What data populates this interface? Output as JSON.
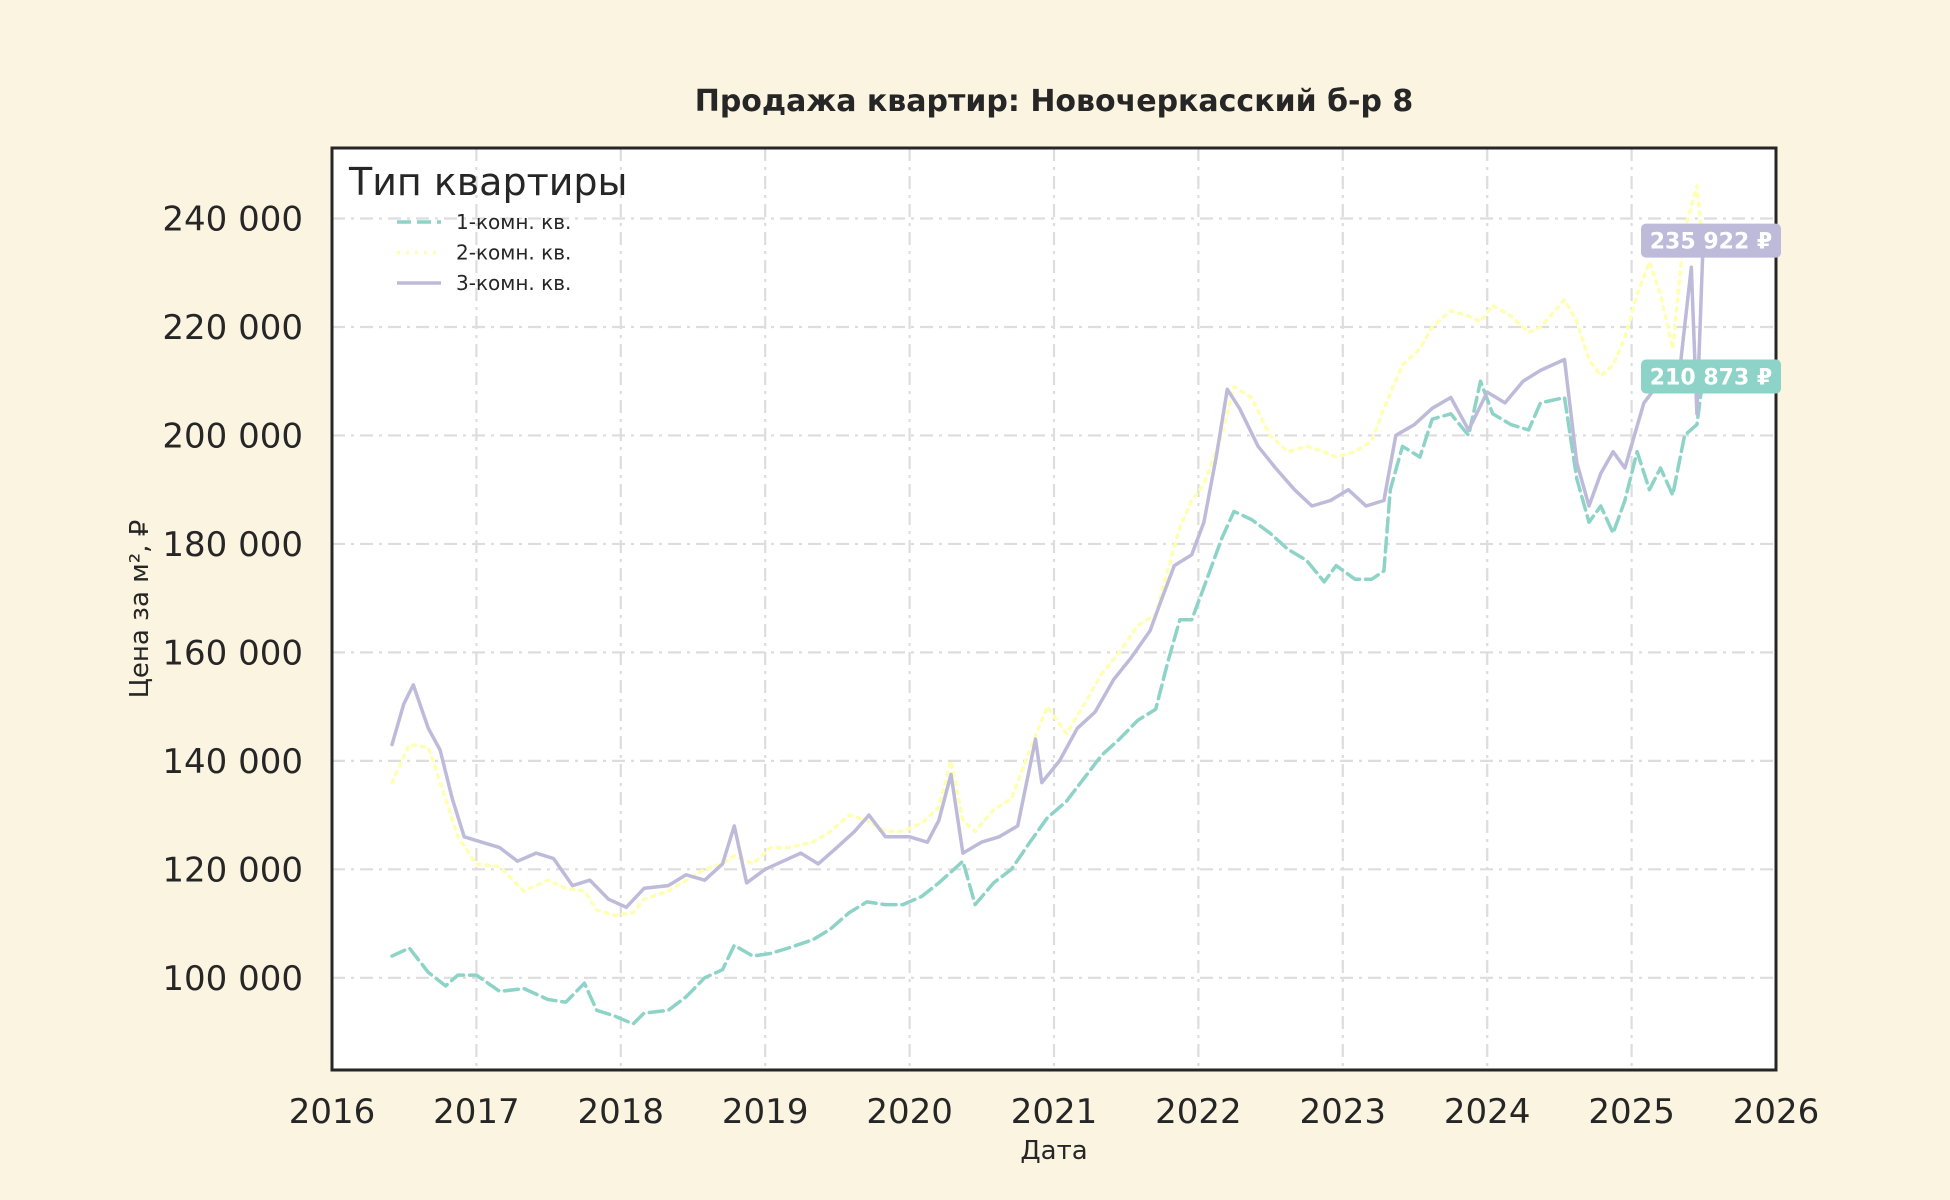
{
  "chart_data": {
    "type": "line",
    "title": "Продажа квартир: Новочеркасский б-р 8",
    "xlabel": "Дата",
    "ylabel": "Цена за м², ₽",
    "xlim": [
      2016,
      2026
    ],
    "ylim": [
      83000,
      253000
    ],
    "x_ticks": [
      "2016",
      "2017",
      "2018",
      "2019",
      "2020",
      "2021",
      "2022",
      "2023",
      "2024",
      "2025",
      "2026"
    ],
    "y_ticks": [
      {
        "value": 100000,
        "label": "100 000"
      },
      {
        "value": 120000,
        "label": "120 000"
      },
      {
        "value": 140000,
        "label": "140 000"
      },
      {
        "value": 160000,
        "label": "160 000"
      },
      {
        "value": 180000,
        "label": "180 000"
      },
      {
        "value": 200000,
        "label": "200 000"
      },
      {
        "value": 220000,
        "label": "220 000"
      },
      {
        "value": 240000,
        "label": "240 000"
      }
    ],
    "grid": true,
    "legend": {
      "title": "Тип квартиры",
      "position": "top-left"
    },
    "series": [
      {
        "name": "1-комн. кв.",
        "color": "#8dd3c7",
        "style": "dashed",
        "end_label": "210 873 ₽",
        "end_label_value": 210873,
        "points": [
          [
            "2016-06-01",
            104000
          ],
          [
            "2016-07-15",
            105500
          ],
          [
            "2016-09-01",
            101000
          ],
          [
            "2016-10-15",
            98500
          ],
          [
            "2016-11-15",
            100500
          ],
          [
            "2017-01-01",
            100500
          ],
          [
            "2017-03-01",
            97500
          ],
          [
            "2017-05-01",
            98000
          ],
          [
            "2017-07-01",
            96000
          ],
          [
            "2017-08-15",
            95500
          ],
          [
            "2017-10-01",
            99000
          ],
          [
            "2017-11-01",
            94000
          ],
          [
            "2017-12-15",
            93000
          ],
          [
            "2018-02-01",
            91500
          ],
          [
            "2018-03-01",
            93500
          ],
          [
            "2018-05-01",
            94000
          ],
          [
            "2018-06-15",
            96500
          ],
          [
            "2018-08-01",
            100000
          ],
          [
            "2018-09-15",
            101500
          ],
          [
            "2018-10-15",
            106000
          ],
          [
            "2018-12-01",
            104000
          ],
          [
            "2019-01-15",
            104500
          ],
          [
            "2019-03-01",
            105500
          ],
          [
            "2019-05-01",
            107000
          ],
          [
            "2019-06-15",
            109000
          ],
          [
            "2019-08-01",
            112000
          ],
          [
            "2019-09-15",
            114000
          ],
          [
            "2019-11-01",
            113500
          ],
          [
            "2019-12-15",
            113500
          ],
          [
            "2020-02-01",
            115000
          ],
          [
            "2020-03-15",
            117500
          ],
          [
            "2020-04-15",
            119500
          ],
          [
            "2020-05-15",
            121500
          ],
          [
            "2020-06-15",
            113500
          ],
          [
            "2020-08-01",
            117500
          ],
          [
            "2020-09-15",
            120000
          ],
          [
            "2020-11-01",
            125000
          ],
          [
            "2020-12-15",
            129500
          ],
          [
            "2021-02-01",
            132500
          ],
          [
            "2021-03-15",
            136500
          ],
          [
            "2021-05-01",
            141000
          ],
          [
            "2021-06-15",
            144000
          ],
          [
            "2021-08-01",
            147500
          ],
          [
            "2021-09-15",
            149500
          ],
          [
            "2021-10-15",
            158000
          ],
          [
            "2021-11-15",
            166000
          ],
          [
            "2021-12-15",
            166000
          ],
          [
            "2022-01-15",
            172000
          ],
          [
            "2022-03-01",
            181000
          ],
          [
            "2022-04-01",
            186000
          ],
          [
            "2022-05-15",
            184500
          ],
          [
            "2022-07-01",
            182000
          ],
          [
            "2022-08-15",
            179000
          ],
          [
            "2022-10-01",
            177000
          ],
          [
            "2022-11-15",
            173000
          ],
          [
            "2022-12-15",
            176000
          ],
          [
            "2023-02-01",
            173500
          ],
          [
            "2023-03-15",
            173500
          ],
          [
            "2023-04-15",
            175000
          ],
          [
            "2023-05-01",
            190000
          ],
          [
            "2023-06-01",
            198000
          ],
          [
            "2023-07-15",
            196000
          ],
          [
            "2023-08-15",
            203000
          ],
          [
            "2023-10-01",
            204000
          ],
          [
            "2023-11-15",
            200000
          ],
          [
            "2023-12-15",
            210000
          ],
          [
            "2024-01-15",
            204000
          ],
          [
            "2024-03-01",
            202000
          ],
          [
            "2024-04-15",
            201000
          ],
          [
            "2024-05-15",
            206000
          ],
          [
            "2024-07-15",
            207000
          ],
          [
            "2024-08-15",
            192000
          ],
          [
            "2024-09-15",
            184000
          ],
          [
            "2024-10-15",
            187000
          ],
          [
            "2024-11-15",
            182000
          ],
          [
            "2024-12-15",
            188000
          ],
          [
            "2025-01-15",
            197000
          ],
          [
            "2025-02-15",
            190000
          ],
          [
            "2025-03-15",
            194000
          ],
          [
            "2025-04-15",
            189000
          ],
          [
            "2025-05-15",
            200000
          ],
          [
            "2025-06-15",
            202000
          ],
          [
            "2025-07-01",
            210873
          ]
        ]
      },
      {
        "name": "2-комн. кв.",
        "color": "#ffffb3",
        "style": "dotted",
        "end_label": "",
        "points": [
          [
            "2016-06-01",
            136000
          ],
          [
            "2016-07-15",
            143000
          ],
          [
            "2016-09-01",
            142500
          ],
          [
            "2016-10-15",
            133000
          ],
          [
            "2016-11-15",
            126000
          ],
          [
            "2017-01-01",
            121000
          ],
          [
            "2017-03-01",
            120500
          ],
          [
            "2017-05-01",
            116000
          ],
          [
            "2017-07-01",
            118000
          ],
          [
            "2017-08-15",
            116500
          ],
          [
            "2017-10-01",
            116000
          ],
          [
            "2017-11-01",
            112500
          ],
          [
            "2017-12-15",
            111500
          ],
          [
            "2018-02-01",
            112000
          ],
          [
            "2018-03-01",
            114500
          ],
          [
            "2018-05-01",
            116000
          ],
          [
            "2018-06-15",
            118000
          ],
          [
            "2018-08-01",
            120000
          ],
          [
            "2018-09-15",
            121000
          ],
          [
            "2018-10-15",
            122500
          ],
          [
            "2018-12-01",
            121000
          ],
          [
            "2019-01-15",
            124000
          ],
          [
            "2019-03-01",
            124000
          ],
          [
            "2019-05-01",
            125000
          ],
          [
            "2019-06-15",
            127000
          ],
          [
            "2019-08-01",
            130000
          ],
          [
            "2019-09-15",
            129000
          ],
          [
            "2019-11-01",
            127000
          ],
          [
            "2019-12-15",
            127000
          ],
          [
            "2020-02-01",
            128500
          ],
          [
            "2020-03-15",
            131500
          ],
          [
            "2020-04-15",
            140000
          ],
          [
            "2020-05-15",
            129000
          ],
          [
            "2020-06-15",
            127000
          ],
          [
            "2020-08-01",
            131000
          ],
          [
            "2020-09-15",
            133000
          ],
          [
            "2020-11-01",
            142000
          ],
          [
            "2020-12-15",
            150000
          ],
          [
            "2021-02-01",
            145000
          ],
          [
            "2021-03-15",
            150000
          ],
          [
            "2021-05-01",
            156000
          ],
          [
            "2021-06-15",
            160000
          ],
          [
            "2021-08-01",
            165000
          ],
          [
            "2021-09-15",
            167000
          ],
          [
            "2021-10-15",
            175000
          ],
          [
            "2021-11-15",
            183000
          ],
          [
            "2021-12-15",
            188000
          ],
          [
            "2022-01-15",
            191000
          ],
          [
            "2022-03-01",
            200000
          ],
          [
            "2022-04-01",
            209000
          ],
          [
            "2022-05-15",
            207000
          ],
          [
            "2022-07-01",
            200000
          ],
          [
            "2022-08-15",
            197000
          ],
          [
            "2022-10-01",
            198000
          ],
          [
            "2022-11-15",
            197000
          ],
          [
            "2022-12-15",
            196000
          ],
          [
            "2023-02-01",
            197000
          ],
          [
            "2023-03-15",
            199000
          ],
          [
            "2023-04-15",
            205000
          ],
          [
            "2023-06-01",
            213000
          ],
          [
            "2023-07-15",
            216000
          ],
          [
            "2023-08-15",
            220000
          ],
          [
            "2023-10-01",
            223000
          ],
          [
            "2023-11-15",
            222000
          ],
          [
            "2023-12-15",
            221000
          ],
          [
            "2024-01-15",
            224000
          ],
          [
            "2024-03-01",
            222000
          ],
          [
            "2024-04-15",
            219000
          ],
          [
            "2024-05-15",
            220000
          ],
          [
            "2024-07-15",
            225000
          ],
          [
            "2024-08-15",
            221000
          ],
          [
            "2024-09-15",
            214000
          ],
          [
            "2024-10-15",
            211000
          ],
          [
            "2024-11-15",
            213000
          ],
          [
            "2024-12-15",
            218000
          ],
          [
            "2025-01-15",
            226000
          ],
          [
            "2025-02-15",
            232000
          ],
          [
            "2025-03-15",
            226000
          ],
          [
            "2025-04-15",
            216000
          ],
          [
            "2025-05-15",
            238000
          ],
          [
            "2025-06-15",
            246000
          ],
          [
            "2025-07-01",
            234000
          ]
        ]
      },
      {
        "name": "3-комн. кв.",
        "color": "#bebada",
        "style": "solid",
        "end_label": "235 922 ₽",
        "end_label_value": 235922,
        "points": [
          [
            "2016-06-01",
            143000
          ],
          [
            "2016-07-01",
            150500
          ],
          [
            "2016-07-25",
            154000
          ],
          [
            "2016-09-01",
            146000
          ],
          [
            "2016-10-01",
            142000
          ],
          [
            "2016-11-01",
            133000
          ],
          [
            "2016-12-01",
            126000
          ],
          [
            "2017-01-15",
            125000
          ],
          [
            "2017-03-01",
            124000
          ],
          [
            "2017-04-15",
            121500
          ],
          [
            "2017-06-01",
            123000
          ],
          [
            "2017-07-15",
            122000
          ],
          [
            "2017-09-01",
            117000
          ],
          [
            "2017-10-15",
            118000
          ],
          [
            "2017-12-01",
            114500
          ],
          [
            "2018-01-15",
            113000
          ],
          [
            "2018-03-01",
            116500
          ],
          [
            "2018-05-01",
            117000
          ],
          [
            "2018-06-15",
            119000
          ],
          [
            "2018-08-01",
            118000
          ],
          [
            "2018-09-15",
            121000
          ],
          [
            "2018-10-15",
            128000
          ],
          [
            "2018-11-15",
            117500
          ],
          [
            "2019-01-01",
            120000
          ],
          [
            "2019-02-15",
            121500
          ],
          [
            "2019-04-01",
            123000
          ],
          [
            "2019-05-15",
            121000
          ],
          [
            "2019-07-01",
            124000
          ],
          [
            "2019-08-15",
            127000
          ],
          [
            "2019-09-20",
            130000
          ],
          [
            "2019-11-01",
            126000
          ],
          [
            "2020-01-01",
            126000
          ],
          [
            "2020-02-15",
            125000
          ],
          [
            "2020-03-15",
            129000
          ],
          [
            "2020-04-15",
            137500
          ],
          [
            "2020-05-15",
            123000
          ],
          [
            "2020-07-01",
            125000
          ],
          [
            "2020-08-15",
            126000
          ],
          [
            "2020-10-01",
            128000
          ],
          [
            "2020-11-15",
            144000
          ],
          [
            "2020-12-01",
            136000
          ],
          [
            "2021-01-15",
            140000
          ],
          [
            "2021-03-01",
            146000
          ],
          [
            "2021-04-15",
            149000
          ],
          [
            "2021-06-01",
            155000
          ],
          [
            "2021-07-15",
            159000
          ],
          [
            "2021-09-01",
            164000
          ],
          [
            "2021-10-01",
            170000
          ],
          [
            "2021-11-01",
            176000
          ],
          [
            "2021-12-15",
            178000
          ],
          [
            "2022-01-15",
            184000
          ],
          [
            "2022-02-15",
            196000
          ],
          [
            "2022-03-15",
            208500
          ],
          [
            "2022-04-15",
            205000
          ],
          [
            "2022-06-01",
            198000
          ],
          [
            "2022-07-15",
            194000
          ],
          [
            "2022-09-01",
            190000
          ],
          [
            "2022-10-15",
            187000
          ],
          [
            "2022-12-01",
            188000
          ],
          [
            "2023-01-15",
            190000
          ],
          [
            "2023-03-01",
            187000
          ],
          [
            "2023-04-15",
            188000
          ],
          [
            "2023-05-15",
            200000
          ],
          [
            "2023-07-01",
            202000
          ],
          [
            "2023-08-15",
            205000
          ],
          [
            "2023-10-01",
            207000
          ],
          [
            "2023-11-15",
            201000
          ],
          [
            "2024-01-01",
            208000
          ],
          [
            "2024-02-15",
            206000
          ],
          [
            "2024-04-01",
            210000
          ],
          [
            "2024-05-15",
            212000
          ],
          [
            "2024-07-15",
            214000
          ],
          [
            "2024-08-15",
            195000
          ],
          [
            "2024-09-15",
            187000
          ],
          [
            "2024-10-15",
            193000
          ],
          [
            "2024-11-15",
            197000
          ],
          [
            "2024-12-15",
            194000
          ],
          [
            "2025-02-01",
            206000
          ],
          [
            "2025-03-15",
            210000
          ],
          [
            "2025-05-01",
            211000
          ],
          [
            "2025-06-01",
            231000
          ],
          [
            "2025-06-15",
            204000
          ],
          [
            "2025-07-01",
            235922
          ]
        ]
      }
    ]
  }
}
